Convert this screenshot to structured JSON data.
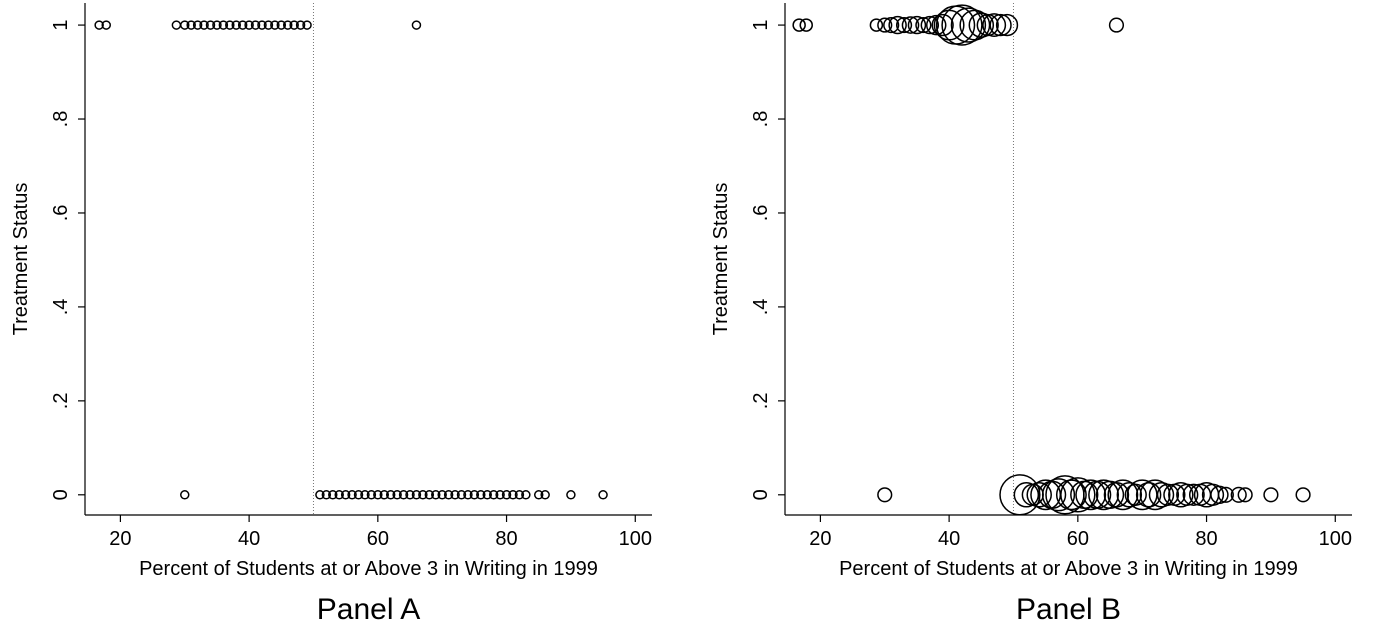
{
  "chart_data": [
    {
      "type": "scatter",
      "title": "Panel A",
      "x_label": "Percent of Students at or Above 3 in Writing in 1999",
      "y_label": "Treatment Status",
      "xlim": [
        14.5,
        102.6
      ],
      "ylim": [
        -0.043,
        1.047
      ],
      "xticks": [
        20,
        40,
        60,
        80,
        100
      ],
      "yticks": [
        0,
        {
          "value": 0.2,
          "label": ".2"
        },
        {
          "value": 0.4,
          "label": ".4"
        },
        {
          "value": 0.6,
          "label": ".6"
        },
        {
          "value": 0.8,
          "label": ".8"
        },
        1
      ],
      "reference_line": 50,
      "color": "#000000",
      "x": [
        16.7,
        17.8,
        28.7,
        30,
        31,
        32,
        33,
        34,
        35,
        36,
        37,
        38,
        39,
        40,
        41,
        42,
        43,
        44,
        45,
        46,
        47,
        48,
        49,
        66,
        30,
        51,
        52,
        53,
        54,
        55,
        56,
        57,
        58,
        59,
        60,
        61,
        62,
        63,
        64,
        65,
        66,
        67,
        68,
        69,
        70,
        71,
        72,
        73,
        74,
        75,
        76,
        77,
        78,
        79,
        80,
        81,
        82,
        83,
        85,
        86,
        90,
        95
      ],
      "values": [
        1,
        1,
        1,
        1,
        1,
        1,
        1,
        1,
        1,
        1,
        1,
        1,
        1,
        1,
        1,
        1,
        1,
        1,
        1,
        1,
        1,
        1,
        1,
        1,
        0,
        0,
        0,
        0,
        0,
        0,
        0,
        0,
        0,
        0,
        0,
        0,
        0,
        0,
        0,
        0,
        0,
        0,
        0,
        0,
        0,
        0,
        0,
        0,
        0,
        0,
        0,
        0,
        0,
        0,
        0,
        0,
        0,
        0,
        0,
        0,
        0,
        0
      ]
    },
    {
      "type": "bubble",
      "title": "Panel B",
      "x_label": "Percent of Students at or Above 3 in Writing in 1999",
      "y_label": "Treatment Status",
      "xlim": [
        14.5,
        102.6
      ],
      "ylim": [
        -0.043,
        1.047
      ],
      "xticks": [
        20,
        40,
        60,
        80,
        100
      ],
      "yticks": [
        0,
        {
          "value": 0.2,
          "label": ".2"
        },
        {
          "value": 0.4,
          "label": ".4"
        },
        {
          "value": 0.6,
          "label": ".6"
        },
        {
          "value": 0.8,
          "label": ".8"
        },
        1
      ],
      "reference_line": 50,
      "color": "#000000",
      "x": [
        16.7,
        17.8,
        28.7,
        30,
        31,
        32,
        33,
        34,
        35,
        36,
        37,
        38,
        39,
        40,
        41,
        42,
        43,
        44,
        45,
        46,
        47,
        48,
        49,
        66,
        30,
        51,
        52,
        53,
        54,
        55,
        56,
        57,
        58,
        59,
        60,
        61,
        62,
        63,
        64,
        65,
        66,
        67,
        68,
        69,
        70,
        71,
        72,
        73,
        74,
        75,
        76,
        77,
        78,
        79,
        80,
        81,
        82,
        83,
        85,
        86,
        90,
        95
      ],
      "values": [
        1,
        1,
        1,
        1,
        1,
        1,
        1,
        1,
        1,
        1,
        1,
        1,
        1,
        1,
        1,
        1,
        1,
        1,
        1,
        1,
        1,
        1,
        1,
        1,
        0,
        0,
        0,
        0,
        0,
        0,
        0,
        0,
        0,
        0,
        0,
        0,
        0,
        0,
        0,
        0,
        0,
        0,
        0,
        0,
        0,
        0,
        0,
        0,
        0,
        0,
        0,
        0,
        0,
        0,
        0,
        0,
        0,
        0,
        0,
        0,
        0,
        0
      ],
      "sizes": [
        1,
        1,
        1,
        1.3,
        1.5,
        2,
        1.5,
        1.8,
        2,
        1.5,
        2,
        2.5,
        3,
        6,
        10,
        11,
        8,
        6,
        4,
        3,
        3.5,
        3,
        3,
        1.3,
        1.3,
        11,
        4,
        3,
        4,
        6,
        5,
        7,
        10,
        6,
        8,
        5,
        6,
        5,
        6,
        5,
        4,
        6,
        4,
        3,
        6,
        4,
        6,
        4,
        3,
        3,
        4,
        3,
        3,
        3,
        4,
        3,
        2,
        1.5,
        1.5,
        1.3,
        1.3,
        1.3
      ]
    }
  ]
}
